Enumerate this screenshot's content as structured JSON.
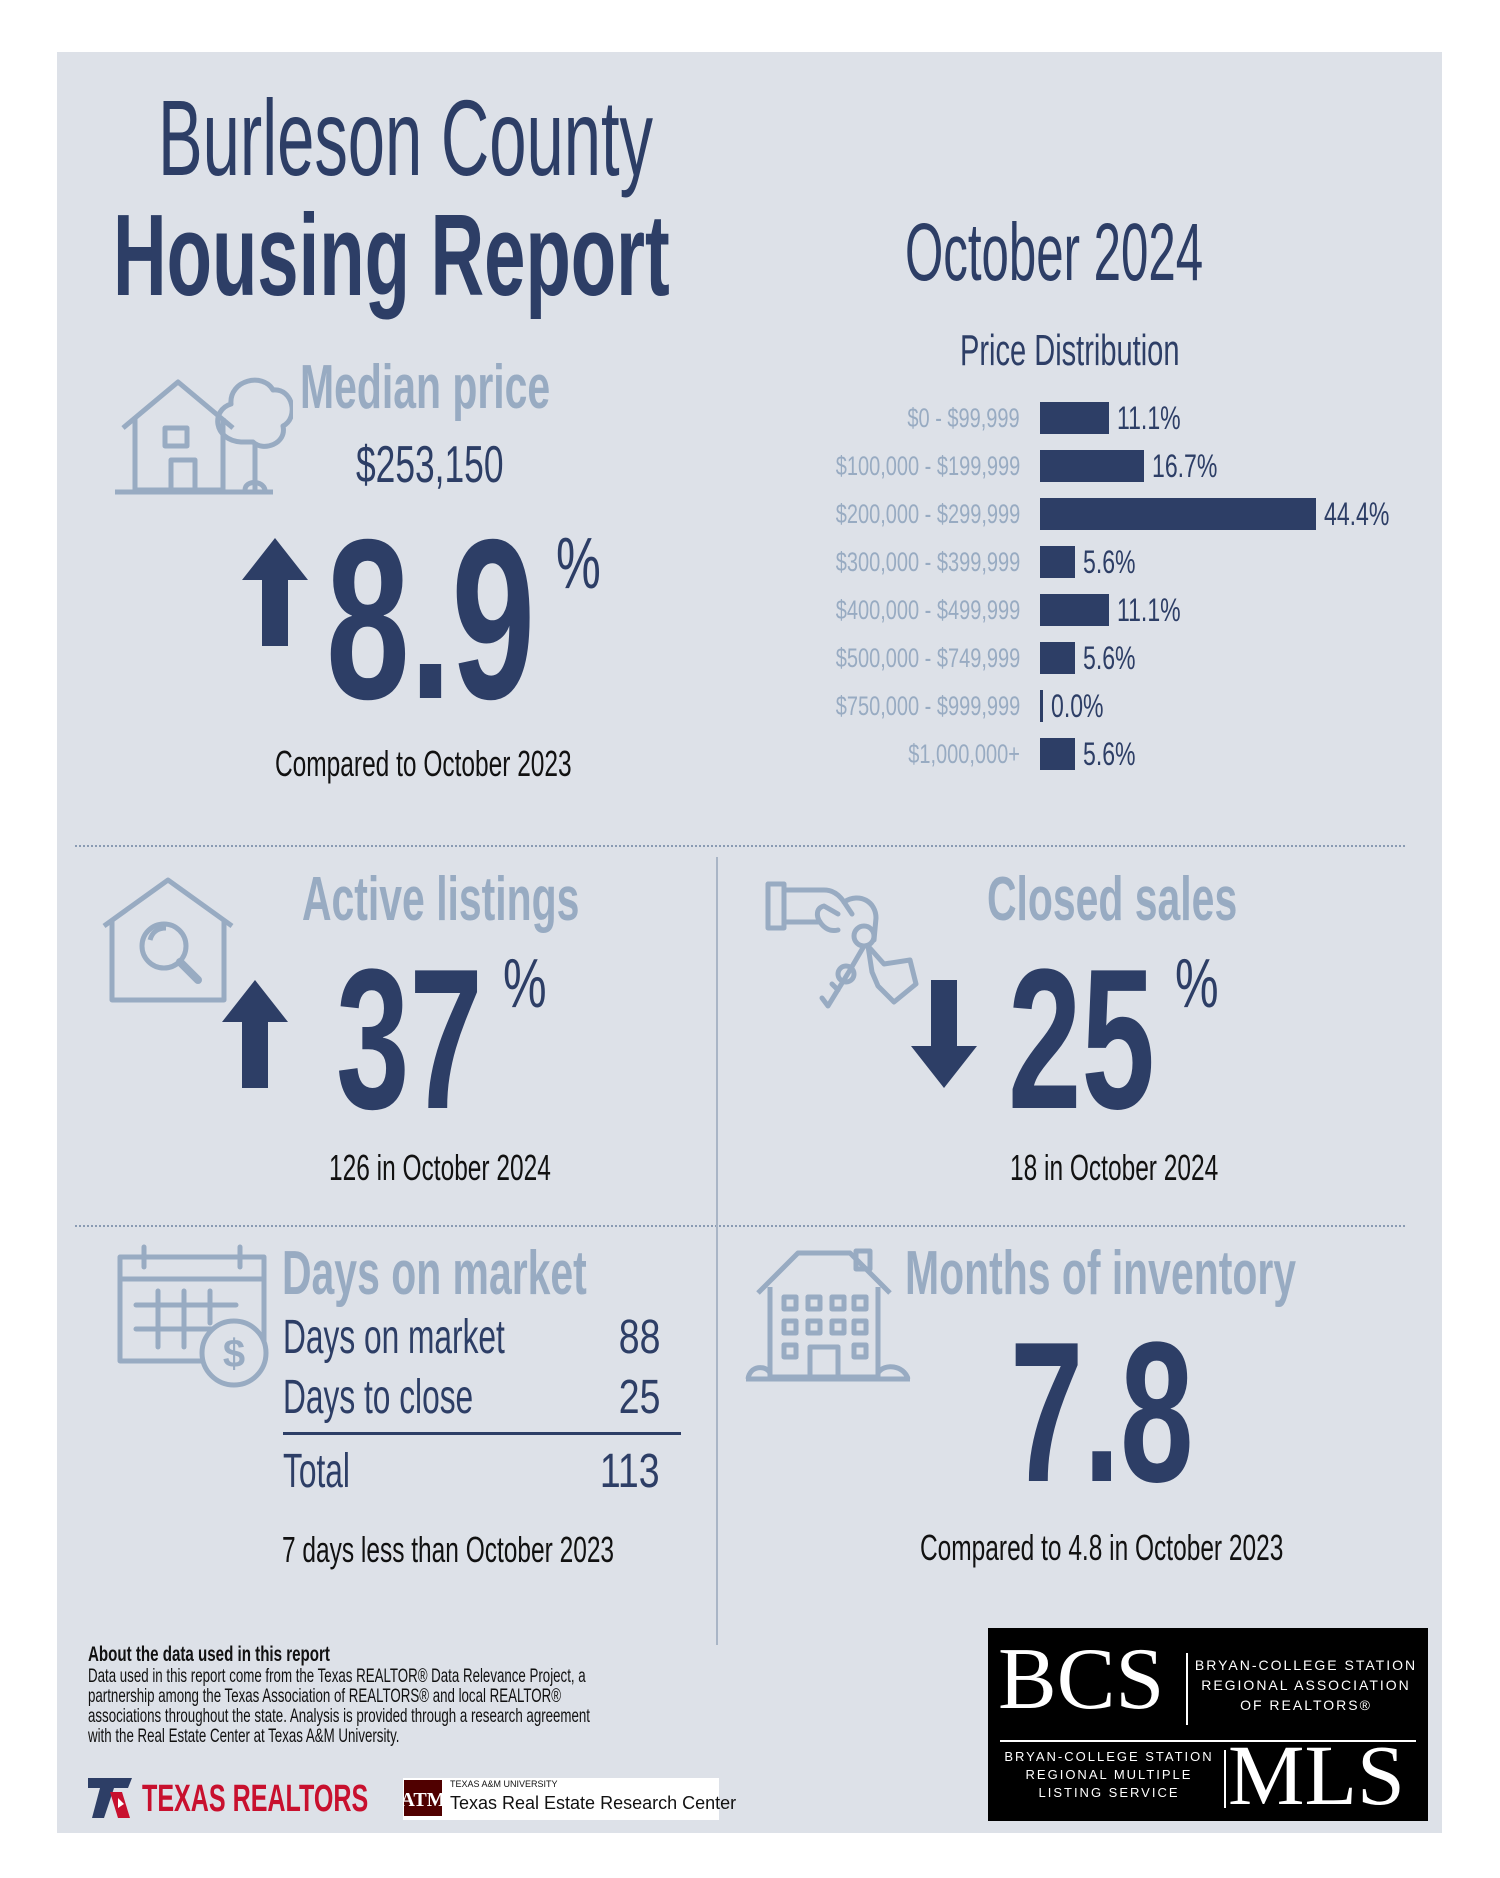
{
  "header": {
    "title_line1": "Burleson County",
    "title_line2": "Housing Report",
    "period": "October 2024"
  },
  "median_price": {
    "heading": "Median price",
    "value": "$253,150",
    "change": "8.9",
    "unit": "%",
    "direction": "up",
    "comparison": "Compared to October 2023"
  },
  "price_distribution": {
    "heading": "Price Distribution"
  },
  "chart_data": {
    "type": "bar",
    "title": "Price Distribution",
    "orientation": "horizontal",
    "categories": [
      "$0 - $99,999",
      "$100,000 - $199,999",
      "$200,000 - $299,999",
      "$300,000 - $399,999",
      "$400,000 - $499,999",
      "$500,000 - $749,999",
      "$750,000 - $999,999",
      "$1,000,000+"
    ],
    "values": [
      11.1,
      16.7,
      44.4,
      5.6,
      11.1,
      5.6,
      0.0,
      5.6
    ],
    "value_labels": [
      "11.1%",
      "16.7%",
      "44.4%",
      "5.6%",
      "11.1%",
      "5.6%",
      "0.0%",
      "5.6%"
    ],
    "color": "#2d3e66",
    "grid": false
  },
  "active_listings": {
    "heading": "Active listings",
    "change": "37",
    "unit": "%",
    "direction": "up",
    "note": "126 in October 2024"
  },
  "closed_sales": {
    "heading": "Closed sales",
    "change": "25",
    "unit": "%",
    "direction": "down",
    "note": "18 in October 2024"
  },
  "days_on_market": {
    "heading": "Days on market",
    "rows": [
      {
        "label": "Days on market",
        "value": "88"
      },
      {
        "label": "Days to close",
        "value": "25"
      }
    ],
    "total_label": "Total",
    "total_value": "113",
    "note": "7 days less than October 2023"
  },
  "months_inventory": {
    "heading": "Months of inventory",
    "value": "7.8",
    "note": "Compared to 4.8 in October 2023"
  },
  "footer": {
    "about_heading": "About the data used in this report",
    "about_line1": "Data used in this report come from the Texas REALTOR® Data Relevance Project, a",
    "about_line2": "partnership among the Texas Association of REALTORS® and local REALTOR®",
    "about_line3": "associations throughout the state. Analysis is provided through a research agreement",
    "about_line4": "with the Real Estate Center at Texas A&M University.",
    "texas_realtors": "TEXAS REALTORS",
    "tamu_small": "TEXAS A&M UNIVERSITY",
    "tamu_center": "Texas Real Estate Research Center",
    "bcs_logo": "BCS",
    "bcs_line1": "BRYAN-COLLEGE STATION",
    "bcs_line2": "REGIONAL ASSOCIATION",
    "bcs_line3": "OF REALTORS®",
    "mls_line1": "BRYAN-COLLEGE STATION",
    "mls_line2": "REGIONAL MULTIPLE",
    "mls_line3": "LISTING SERVICE",
    "mls_logo": "MLS"
  },
  "colors": {
    "navy": "#2d3e66",
    "muted": "#98abc2",
    "panel": "#dde1e8",
    "red": "#c8102e"
  }
}
